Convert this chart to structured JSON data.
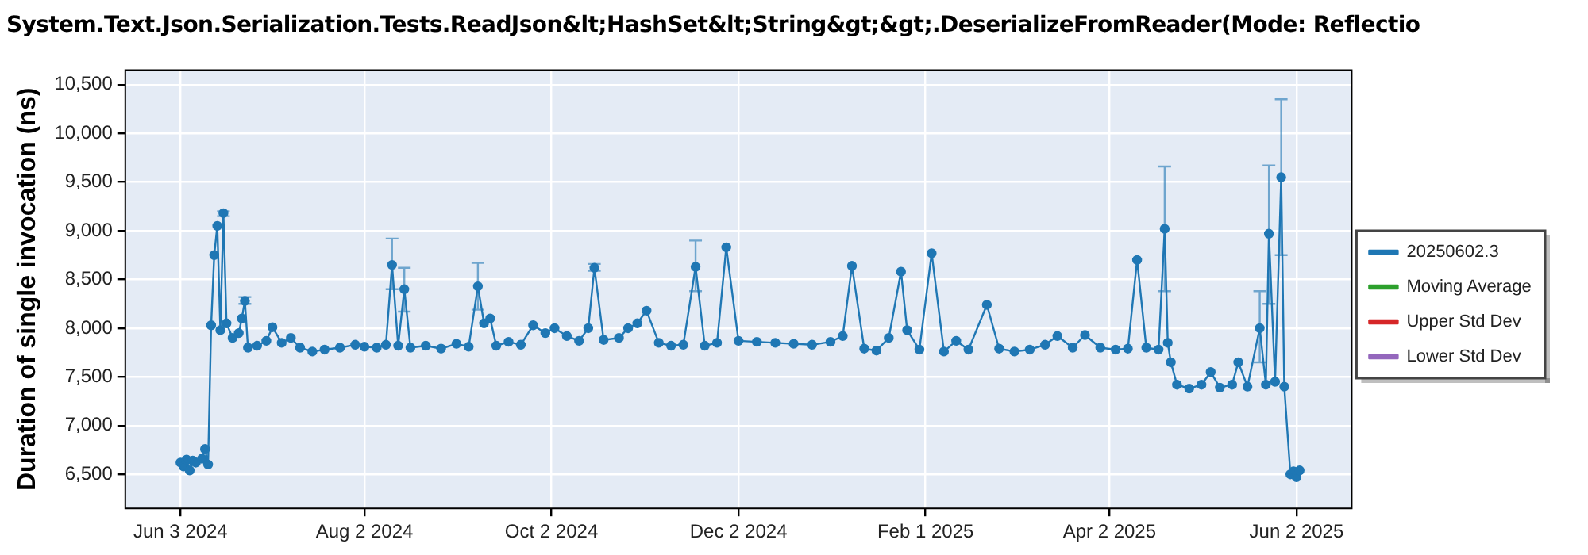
{
  "chart_data": {
    "type": "line",
    "title": "System.Text.Json.Serialization.Tests.ReadJson&lt;HashSet&lt;String&gt;&gt;.DeserializeFromReader(Mode: Reflectio",
    "ylabel": "Duration of single invocation (ns)",
    "x": [
      "2024-06-03",
      "2024-06-04",
      "2024-06-05",
      "2024-06-06",
      "2024-06-07",
      "2024-06-08",
      "2024-06-10",
      "2024-06-11",
      "2024-06-12",
      "2024-06-13",
      "2024-06-14",
      "2024-06-15",
      "2024-06-16",
      "2024-06-17",
      "2024-06-18",
      "2024-06-20",
      "2024-06-22",
      "2024-06-23",
      "2024-06-24",
      "2024-06-25",
      "2024-06-28",
      "2024-07-01",
      "2024-07-03",
      "2024-07-06",
      "2024-07-09",
      "2024-07-12",
      "2024-07-16",
      "2024-07-20",
      "2024-07-25",
      "2024-07-30",
      "2024-08-02",
      "2024-08-06",
      "2024-08-09",
      "2024-08-11",
      "2024-08-13",
      "2024-08-15",
      "2024-08-17",
      "2024-08-22",
      "2024-08-27",
      "2024-09-01",
      "2024-09-05",
      "2024-09-08",
      "2024-09-10",
      "2024-09-12",
      "2024-09-14",
      "2024-09-18",
      "2024-09-22",
      "2024-09-26",
      "2024-09-30",
      "2024-10-03",
      "2024-10-07",
      "2024-10-11",
      "2024-10-14",
      "2024-10-16",
      "2024-10-19",
      "2024-10-24",
      "2024-10-27",
      "2024-10-30",
      "2024-11-02",
      "2024-11-06",
      "2024-11-10",
      "2024-11-14",
      "2024-11-18",
      "2024-11-21",
      "2024-11-25",
      "2024-11-28",
      "2024-12-02",
      "2024-12-08",
      "2024-12-14",
      "2024-12-20",
      "2024-12-26",
      "2025-01-01",
      "2025-01-05",
      "2025-01-08",
      "2025-01-12",
      "2025-01-16",
      "2025-01-20",
      "2025-01-24",
      "2025-01-26",
      "2025-01-30",
      "2025-02-03",
      "2025-02-07",
      "2025-02-11",
      "2025-02-15",
      "2025-02-21",
      "2025-02-25",
      "2025-03-02",
      "2025-03-07",
      "2025-03-12",
      "2025-03-16",
      "2025-03-21",
      "2025-03-25",
      "2025-03-30",
      "2025-04-04",
      "2025-04-08",
      "2025-04-11",
      "2025-04-14",
      "2025-04-18",
      "2025-04-20",
      "2025-04-21",
      "2025-04-22",
      "2025-04-24",
      "2025-04-28",
      "2025-05-02",
      "2025-05-05",
      "2025-05-08",
      "2025-05-12",
      "2025-05-14",
      "2025-05-17",
      "2025-05-21",
      "2025-05-23",
      "2025-05-24",
      "2025-05-26",
      "2025-05-28",
      "2025-05-29",
      "2025-05-31",
      "2025-06-01",
      "2025-06-02",
      "2025-06-03"
    ],
    "series": [
      {
        "name": "20250602.3",
        "color": "#1f77b4",
        "values": [
          6620,
          6580,
          6650,
          6540,
          6640,
          6620,
          6660,
          6760,
          6600,
          8030,
          8750,
          9050,
          7980,
          9180,
          8050,
          7900,
          7950,
          8100,
          8280,
          7800,
          7820,
          7870,
          8010,
          7850,
          7900,
          7800,
          7760,
          7780,
          7800,
          7830,
          7810,
          7800,
          7830,
          8650,
          7820,
          8400,
          7800,
          7820,
          7790,
          7840,
          7810,
          8430,
          8050,
          8100,
          7820,
          7860,
          7830,
          8030,
          7950,
          8000,
          7920,
          7870,
          8000,
          8620,
          7880,
          7900,
          8000,
          8050,
          8180,
          7850,
          7820,
          7830,
          8630,
          7820,
          7850,
          8830,
          7870,
          7860,
          7850,
          7840,
          7830,
          7860,
          7920,
          8640,
          7790,
          7770,
          7900,
          8580,
          7980,
          7780,
          8770,
          7760,
          7870,
          7780,
          8240,
          7790,
          7760,
          7780,
          7830,
          7920,
          7800,
          7930,
          7800,
          7780,
          7790,
          8700,
          7800,
          7780,
          9020,
          7850,
          7650,
          7420,
          7380,
          7420,
          7550,
          7390,
          7420,
          7650,
          7400,
          8000,
          7420,
          8970,
          7450,
          9550,
          7400,
          6500,
          6530,
          6470,
          6540
        ],
        "errors": [
          null,
          null,
          null,
          null,
          null,
          null,
          null,
          null,
          null,
          null,
          null,
          null,
          null,
          [
            9150,
            9200
          ],
          null,
          null,
          null,
          null,
          [
            8250,
            8320
          ],
          null,
          null,
          null,
          null,
          null,
          null,
          null,
          null,
          null,
          null,
          null,
          null,
          null,
          null,
          [
            8400,
            8920
          ],
          null,
          [
            8170,
            8620
          ],
          null,
          null,
          null,
          null,
          null,
          [
            8190,
            8670
          ],
          null,
          null,
          null,
          null,
          null,
          null,
          null,
          null,
          null,
          null,
          null,
          [
            8590,
            8660
          ],
          null,
          null,
          null,
          null,
          null,
          null,
          null,
          null,
          [
            8380,
            8900
          ],
          null,
          null,
          null,
          null,
          null,
          null,
          null,
          null,
          null,
          null,
          null,
          null,
          null,
          null,
          null,
          null,
          null,
          null,
          null,
          null,
          null,
          null,
          null,
          null,
          null,
          null,
          null,
          null,
          null,
          null,
          null,
          null,
          null,
          null,
          null,
          [
            8380,
            9660
          ],
          null,
          null,
          null,
          null,
          null,
          null,
          null,
          null,
          null,
          null,
          [
            7650,
            8380
          ],
          null,
          [
            8250,
            9670
          ],
          null,
          [
            8750,
            10350
          ],
          null,
          null,
          null,
          null,
          null
        ]
      },
      {
        "name": "Moving Average",
        "color": "#2ca02c",
        "values": [
          null,
          null,
          null,
          null,
          null,
          null,
          null,
          null,
          null,
          null,
          null,
          null,
          null,
          null,
          null,
          null,
          null,
          null,
          null,
          null,
          null,
          null,
          null,
          null,
          null,
          null,
          null,
          null,
          null,
          null,
          null,
          null,
          null,
          null,
          null,
          null,
          null,
          null,
          null,
          null,
          null,
          null,
          null,
          null,
          null,
          null,
          null,
          null,
          null,
          null,
          null,
          null,
          null,
          null,
          null,
          null,
          null,
          null,
          null,
          null,
          null,
          null,
          null,
          null,
          null,
          null,
          null,
          null,
          null,
          null,
          null,
          null,
          null,
          null,
          null,
          null,
          null,
          null,
          null,
          null,
          null,
          null,
          null,
          null,
          null,
          null,
          null,
          null,
          null,
          null,
          null,
          null,
          null,
          null,
          null,
          null,
          null,
          null,
          null,
          null,
          null,
          null,
          null,
          null,
          null,
          null,
          null,
          null,
          null,
          null,
          null,
          null,
          null,
          null,
          null,
          null,
          null,
          null,
          null
        ]
      },
      {
        "name": "Upper Std Dev",
        "color": "#d62728",
        "values": [
          null,
          null,
          null,
          null,
          null,
          null,
          null,
          null,
          null,
          null,
          null,
          null,
          null,
          null,
          null,
          null,
          null,
          null,
          null,
          null,
          null,
          null,
          null,
          null,
          null,
          null,
          null,
          null,
          null,
          null,
          null,
          null,
          null,
          null,
          null,
          null,
          null,
          null,
          null,
          null,
          null,
          null,
          null,
          null,
          null,
          null,
          null,
          null,
          null,
          null,
          null,
          null,
          null,
          null,
          null,
          null,
          null,
          null,
          null,
          null,
          null,
          null,
          null,
          null,
          null,
          null,
          null,
          null,
          null,
          null,
          null,
          null,
          null,
          null,
          null,
          null,
          null,
          null,
          null,
          null,
          null,
          null,
          null,
          null,
          null,
          null,
          null,
          null,
          null,
          null,
          null,
          null,
          null,
          null,
          null,
          null,
          null,
          null,
          null,
          null,
          null,
          null,
          null,
          null,
          null,
          null,
          null,
          null,
          null,
          null,
          null,
          null,
          null,
          null,
          null,
          null,
          null,
          null,
          null
        ]
      },
      {
        "name": "Lower Std Dev",
        "color": "#9467bd",
        "values": [
          null,
          null,
          null,
          null,
          null,
          null,
          null,
          null,
          null,
          null,
          null,
          null,
          null,
          null,
          null,
          null,
          null,
          null,
          null,
          null,
          null,
          null,
          null,
          null,
          null,
          null,
          null,
          null,
          null,
          null,
          null,
          null,
          null,
          null,
          null,
          null,
          null,
          null,
          null,
          null,
          null,
          null,
          null,
          null,
          null,
          null,
          null,
          null,
          null,
          null,
          null,
          null,
          null,
          null,
          null,
          null,
          null,
          null,
          null,
          null,
          null,
          null,
          null,
          null,
          null,
          null,
          null,
          null,
          null,
          null,
          null,
          null,
          null,
          null,
          null,
          null,
          null,
          null,
          null,
          null,
          null,
          null,
          null,
          null,
          null,
          null,
          null,
          null,
          null,
          null,
          null,
          null,
          null,
          null,
          null,
          null,
          null,
          null,
          null,
          null,
          null,
          null,
          null,
          null,
          null,
          null,
          null,
          null,
          null,
          null,
          null,
          null,
          null,
          null,
          null,
          null,
          null,
          null,
          null
        ]
      }
    ],
    "xlim": [
      "2024-05-16",
      "2025-06-20"
    ],
    "xticks": [
      {
        "value": "2024-06-03",
        "label": "Jun 3 2024"
      },
      {
        "value": "2024-08-02",
        "label": "Aug 2 2024"
      },
      {
        "value": "2024-10-02",
        "label": "Oct 2 2024"
      },
      {
        "value": "2024-12-02",
        "label": "Dec 2 2024"
      },
      {
        "value": "2025-02-01",
        "label": "Feb 1 2025"
      },
      {
        "value": "2025-04-02",
        "label": "Apr 2 2025"
      },
      {
        "value": "2025-06-02",
        "label": "Jun 2 2025"
      }
    ],
    "ylim": [
      6150,
      10650
    ],
    "yticks": [
      {
        "value": 6500,
        "label": "6,500"
      },
      {
        "value": 7000,
        "label": "7,000"
      },
      {
        "value": 7500,
        "label": "7,500"
      },
      {
        "value": 8000,
        "label": "8,000"
      },
      {
        "value": 8500,
        "label": "8,500"
      },
      {
        "value": 9000,
        "label": "9,000"
      },
      {
        "value": 9500,
        "label": "9,500"
      },
      {
        "value": 10000,
        "label": "10,000"
      },
      {
        "value": 10500,
        "label": "10,500"
      }
    ],
    "grid": true,
    "legend": "right",
    "marker": "circle",
    "line_style": "solid"
  }
}
